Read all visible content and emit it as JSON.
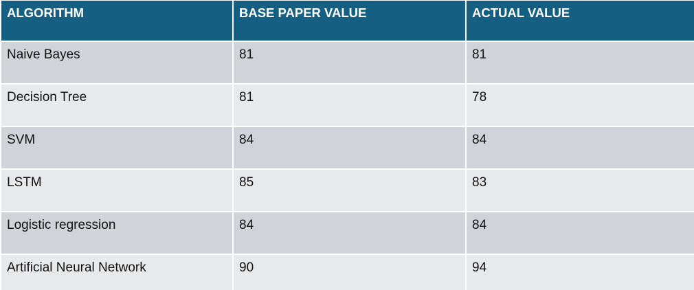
{
  "table": {
    "headers": [
      "ALGORITHM",
      "BASE PAPER VALUE",
      "ACTUAL VALUE"
    ],
    "rows": [
      [
        "Naive Bayes",
        "81",
        "81"
      ],
      [
        "Decision Tree",
        "81",
        "78"
      ],
      [
        "SVM",
        "84",
        "84"
      ],
      [
        "LSTM",
        "85",
        "83"
      ],
      [
        "Logistic regression",
        "84",
        "84"
      ],
      [
        "Artificial Neural Network",
        "90",
        "94"
      ]
    ]
  },
  "colors": {
    "header_bg": "#156082",
    "header_text": "#ffffff",
    "row_band_dark": "#cfd4da",
    "row_band_light": "#e7eaed"
  }
}
